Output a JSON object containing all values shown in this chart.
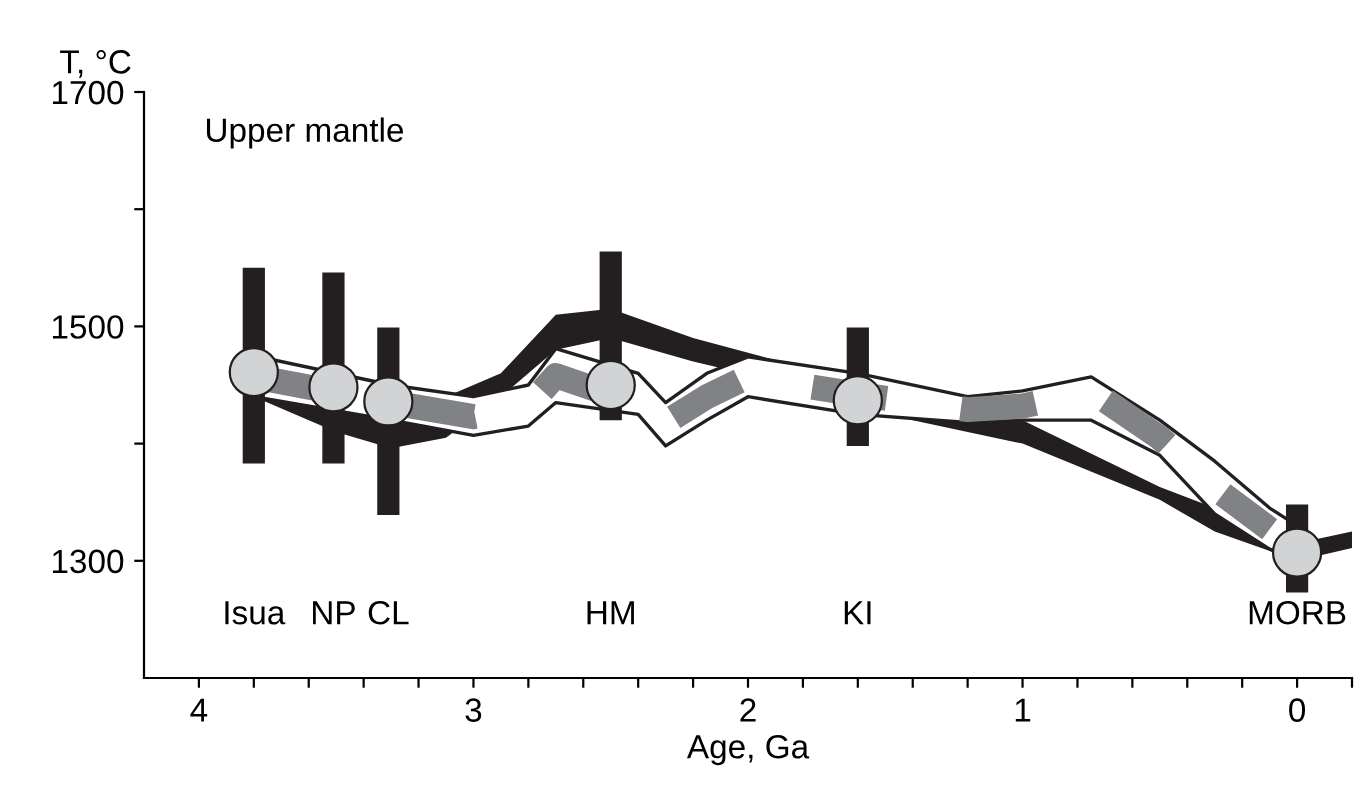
{
  "chart_data": {
    "type": "line",
    "xlabel": "Age, Ga",
    "ylabel": "T, °C",
    "xlim": [
      4.2,
      -0.2
    ],
    "ylim": [
      1200,
      1700
    ],
    "xticks": [
      4,
      {
        "value": 3.8,
        "label": null
      },
      {
        "value": 3.6,
        "label": null
      },
      {
        "value": 3.4,
        "label": null
      },
      {
        "value": 3.2,
        "label": null
      },
      3,
      {
        "value": 2.8,
        "label": null
      },
      {
        "value": 2.6,
        "label": null
      },
      {
        "value": 2.4,
        "label": null
      },
      {
        "value": 2.2,
        "label": null
      },
      2,
      {
        "value": 1.8,
        "label": null
      },
      {
        "value": 1.6,
        "label": null
      },
      {
        "value": 1.4,
        "label": null
      },
      {
        "value": 1.2,
        "label": null
      },
      1,
      {
        "value": 0.8,
        "label": null
      },
      {
        "value": 0.6,
        "label": null
      },
      {
        "value": 0.4,
        "label": null
      },
      {
        "value": 0.2,
        "label": null
      },
      0,
      {
        "value": -0.2,
        "label": null
      }
    ],
    "yticks": [
      1300,
      {
        "value": 1400,
        "label": null
      },
      1500,
      {
        "value": 1600,
        "label": null
      },
      1700
    ],
    "grid": false,
    "legend": false,
    "series": [
      {
        "color": "#231f20",
        "line_style": "solid",
        "x": [
          3.8,
          3.5,
          3.3,
          3.1,
          2.9,
          2.7,
          2.5,
          2.2,
          1.8,
          1.6,
          1.2,
          1.0,
          0.5,
          0.3,
          0.0,
          -0.2
        ],
        "values": [
          null,
          null,
          null,
          null,
          null,
          null,
          null,
          null,
          null,
          null,
          null,
          null,
          null,
          null,
          null,
          null
        ],
        "lower": [
          1440,
          1410,
          1396,
          1405,
          1440,
          1480,
          1490,
          1470,
          1448,
          1430,
          1410,
          1400,
          1352,
          1325,
          1300,
          1311
        ],
        "upper": [
          1460,
          1450,
          1440,
          1440,
          1460,
          1510,
          1515,
          1490,
          1465,
          1450,
          1430,
          1420,
          1363,
          1345,
          1315,
          1325
        ]
      },
      {
        "color": "#808285",
        "line_style": "dashed",
        "x": [
          3.8,
          3.3,
          3.0,
          2.8,
          2.7,
          2.4,
          2.3,
          2.15,
          2.0,
          1.6,
          1.2,
          1.0,
          0.75,
          0.5,
          0.3,
          0.1,
          0.0
        ],
        "values": [
          1457,
          1435,
          1423,
          1432,
          1458,
          1434,
          1418,
          1440,
          1457,
          1442,
          1429,
          1432,
          1445,
          1405,
          1362,
          1327,
          null
        ],
        "lower": [
          1440,
          1420,
          1407,
          1415,
          1435,
          1425,
          1398,
          1420,
          1440,
          1425,
          1418,
          1420,
          1420,
          1390,
          1340,
          1310,
          1300
        ],
        "upper": [
          1475,
          1450,
          1440,
          1450,
          1481,
          1460,
          1435,
          1460,
          1474,
          1460,
          1440,
          1445,
          1457,
          1420,
          1385,
          1345,
          1330
        ]
      },
      {
        "type": "scatter",
        "color": "#d1d3d4",
        "marker": "circle",
        "x": [
          3.8,
          3.51,
          3.31,
          2.5,
          1.6,
          0.0
        ],
        "values": [
          1461,
          1448,
          1436,
          1450,
          1437,
          1307
        ],
        "errors": [
          [
            1383,
            1550
          ],
          [
            1383,
            1546
          ],
          [
            1339,
            1499
          ],
          [
            1420,
            1564
          ],
          [
            1398,
            1499
          ],
          [
            1273,
            1348
          ]
        ]
      }
    ],
    "annotations": [
      "Upper mantle",
      "Isua",
      "NP",
      "CL",
      "HM",
      "KI",
      "MORB"
    ]
  }
}
